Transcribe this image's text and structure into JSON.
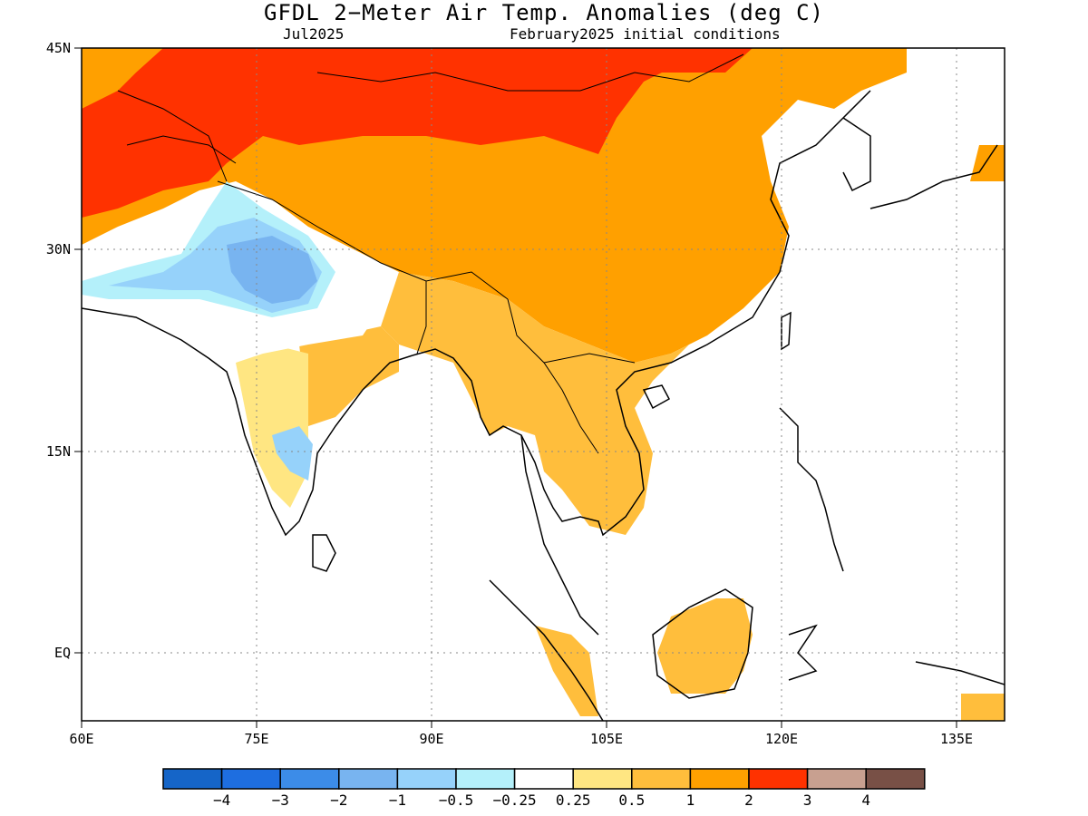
{
  "title": "GFDL 2−Meter Air Temp. Anomalies (deg C)",
  "subtitle_left": "Jul2025",
  "subtitle_right": "February2025 initial conditions",
  "map": {
    "x_ticks": [
      "60E",
      "75E",
      "90E",
      "105E",
      "120E",
      "135E"
    ],
    "y_ticks": [
      "45N",
      "30N",
      "15N",
      "EQ"
    ],
    "lon_range": [
      60,
      140
    ],
    "lat_range": [
      -5,
      45
    ],
    "grid": "dotted"
  },
  "colorbar": {
    "colors": [
      "#1565c8",
      "#1e6ee0",
      "#3c8ce8",
      "#78b4f0",
      "#96d2fa",
      "#b4f0fa",
      "#ffffff",
      "#ffe682",
      "#ffbe3c",
      "#ffa000",
      "#ff3200",
      "#c8a090",
      "#785046"
    ],
    "labels": [
      "−4",
      "−3",
      "−2",
      "−1",
      "−0.5",
      "−0.25",
      "0.25",
      "0.5",
      "1",
      "2",
      "3",
      "4"
    ]
  }
}
